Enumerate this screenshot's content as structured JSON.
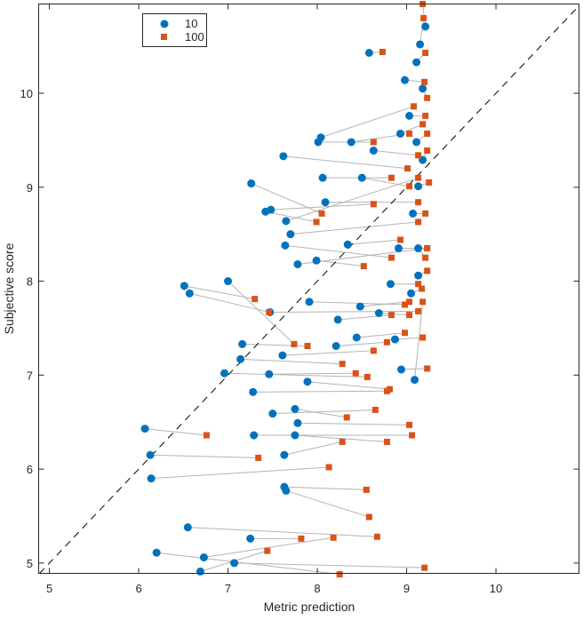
{
  "chart_data": {
    "type": "scatter",
    "xlabel": "Metric prediction",
    "ylabel": "Subjective score",
    "xlim": [
      4.88,
      10.93
    ],
    "ylim": [
      4.89,
      10.95
    ],
    "xticks": [
      5,
      6,
      7,
      8,
      9,
      10
    ],
    "yticks": [
      5,
      6,
      7,
      8,
      9,
      10
    ],
    "grid": false,
    "legend_placement": "top-left",
    "reference_line": "y = x (dashed black)",
    "connector_color": "#b4b4b4",
    "series": [
      {
        "name": "10",
        "marker": "circle",
        "color": "#0072bd",
        "x": [
          6.07,
          6.13,
          6.14,
          6.55,
          6.2,
          6.73,
          7.07,
          6.69,
          7.25,
          6.51,
          6.57,
          7.0,
          7.26,
          7.42,
          7.48,
          7.62,
          7.64,
          7.65,
          7.7,
          7.78,
          7.16,
          7.14,
          6.96,
          7.28,
          7.29,
          7.46,
          7.47,
          7.5,
          7.61,
          7.75,
          7.63,
          7.65,
          7.63,
          7.75,
          7.78,
          7.91,
          7.99,
          8.01,
          8.04,
          8.06,
          8.09,
          8.21,
          8.34,
          8.38,
          8.44,
          8.48,
          8.5,
          8.58,
          8.63,
          8.69,
          8.82,
          8.87,
          8.91,
          8.94,
          8.98,
          9.03,
          9.07,
          9.09,
          9.15,
          9.18,
          9.13,
          9.18,
          9.13,
          9.11,
          9.05,
          8.23,
          7.89,
          9.11,
          9.13,
          8.93,
          9.21
        ],
        "y": [
          6.43,
          6.15,
          5.9,
          5.38,
          5.11,
          5.06,
          5.0,
          4.91,
          5.26,
          7.95,
          7.87,
          8.0,
          9.04,
          8.74,
          8.76,
          9.33,
          8.38,
          8.64,
          8.5,
          8.18,
          7.33,
          7.17,
          7.02,
          6.82,
          6.36,
          7.01,
          7.67,
          6.59,
          7.21,
          6.64,
          5.81,
          5.77,
          6.15,
          6.36,
          6.49,
          7.78,
          8.22,
          9.48,
          9.53,
          9.1,
          8.84,
          7.31,
          8.39,
          9.48,
          7.4,
          7.73,
          9.1,
          10.43,
          9.39,
          7.66,
          7.97,
          7.38,
          8.35,
          7.06,
          10.14,
          9.76,
          8.72,
          6.95,
          10.52,
          10.05,
          8.35,
          9.29,
          8.06,
          10.33,
          7.87,
          7.59,
          6.93,
          9.48,
          9.01,
          9.57,
          10.71
        ]
      },
      {
        "name": "100",
        "marker": "square",
        "color": "#d95319",
        "x": [
          6.76,
          7.34,
          8.13,
          8.67,
          8.25,
          8.18,
          9.2,
          7.44,
          7.82,
          7.3,
          7.46,
          7.74,
          8.05,
          7.99,
          8.63,
          9.01,
          8.83,
          9.13,
          9.13,
          9.23,
          7.89,
          8.28,
          8.56,
          8.78,
          9.06,
          8.43,
          9.13,
          8.65,
          8.63,
          8.33,
          8.55,
          8.58,
          8.28,
          8.78,
          9.03,
          8.98,
          8.52,
          8.63,
          9.08,
          8.83,
          9.13,
          8.78,
          8.93,
          9.03,
          8.98,
          9.03,
          9.03,
          8.73,
          9.13,
          9.03,
          9.13,
          9.18,
          9.23,
          9.23,
          9.2,
          9.21,
          9.21,
          9.18,
          9.19,
          9.23,
          9.21,
          9.23,
          9.23,
          9.21,
          9.17,
          8.83,
          8.81,
          9.23,
          9.25,
          9.18,
          9.18
        ],
        "y": [
          6.36,
          6.12,
          6.02,
          5.28,
          4.88,
          5.27,
          4.95,
          5.13,
          5.26,
          7.81,
          7.67,
          7.33,
          8.72,
          8.63,
          8.82,
          9.2,
          8.25,
          9.1,
          8.63,
          8.35,
          7.31,
          7.12,
          6.98,
          6.83,
          6.36,
          7.02,
          7.68,
          6.63,
          7.26,
          6.55,
          5.78,
          5.49,
          6.29,
          6.29,
          6.47,
          7.75,
          8.16,
          9.48,
          9.86,
          9.1,
          8.84,
          7.35,
          8.44,
          9.57,
          7.45,
          7.78,
          9.01,
          10.44,
          9.34,
          7.64,
          7.97,
          7.4,
          8.35,
          7.07,
          10.12,
          9.76,
          8.72,
          7.78,
          10.8,
          9.95,
          8.25,
          9.39,
          8.11,
          10.43,
          7.92,
          7.64,
          6.85,
          9.57,
          9.05,
          9.67,
          10.95
        ]
      }
    ]
  }
}
